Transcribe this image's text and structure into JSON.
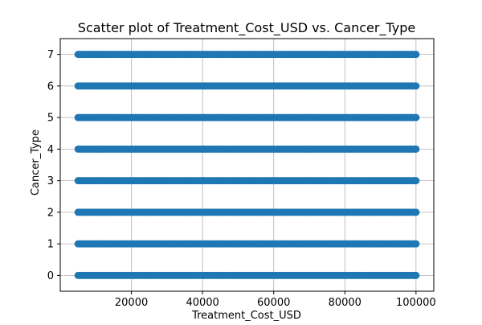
{
  "chart_data": {
    "type": "scatter",
    "title": "Scatter plot of Treatment_Cost_USD vs. Cancer_Type",
    "xlabel": "Treatment_Cost_USD",
    "ylabel": "Cancer_Type",
    "xlim": [
      0,
      105000
    ],
    "ylim": [
      -0.5,
      7.5
    ],
    "x_ticks": [
      20000,
      40000,
      60000,
      80000,
      100000
    ],
    "y_ticks": [
      0,
      1,
      2,
      3,
      4,
      5,
      6,
      7
    ],
    "grid": true,
    "marker_color": "#1f77b4",
    "series": [
      {
        "points_description": "dense continuous band of points per category",
        "categories": [
          0,
          1,
          2,
          3,
          4,
          5,
          6,
          7
        ],
        "x_min": 5000,
        "x_max": 100000
      }
    ]
  }
}
